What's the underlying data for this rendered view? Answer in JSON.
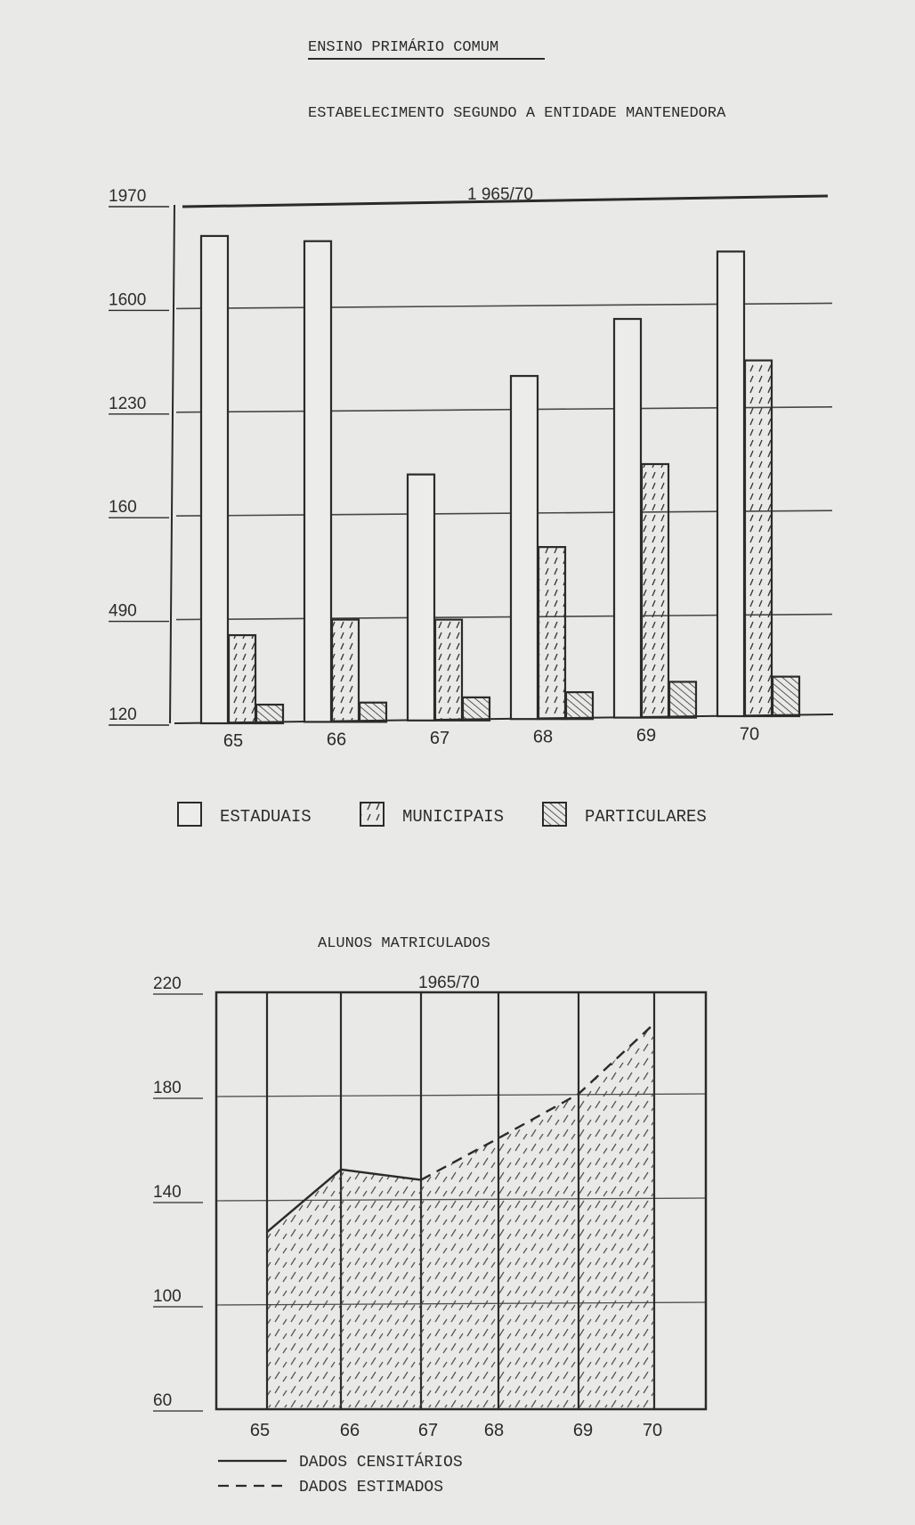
{
  "header": {
    "title": "ENSINO PRIMÁRIO COMUM",
    "subtitle": "ESTABELECIMENTO SEGUNDO A ENTIDADE MANTENEDORA"
  },
  "colors": {
    "ink": "#2b2b2b",
    "paper": "#e9e9e7",
    "bar_fill": "#ececea"
  },
  "chart_data": [
    {
      "type": "bar",
      "title": "ESTABELECIMENTO SEGUNDO A ENTIDADE MANTENEDORA",
      "period_label": "1 965/70",
      "categories": [
        "65",
        "66",
        "67",
        "68",
        "69",
        "70"
      ],
      "y_tick_labels": [
        "120",
        "490",
        "160",
        "1230",
        "1600",
        "1970"
      ],
      "y_tick_values": [
        0,
        1,
        2,
        3,
        4,
        5
      ],
      "ylim": [
        0,
        5
      ],
      "series": [
        {
          "name": "ESTADUAIS",
          "pattern": "blank",
          "values": [
            4.7,
            4.65,
            2.4,
            3.35,
            3.9,
            4.55
          ]
        },
        {
          "name": "MUNICIPAIS",
          "pattern": "dashes",
          "values": [
            0.85,
            1.0,
            1.0,
            1.7,
            2.5,
            3.5
          ]
        },
        {
          "name": "PARTICULARES",
          "pattern": "hatch",
          "values": [
            0.18,
            0.2,
            0.25,
            0.3,
            0.4,
            0.45
          ]
        }
      ],
      "grid": true,
      "legend_position": "bottom"
    },
    {
      "type": "area",
      "title": "ALUNOS MATRICULADOS",
      "period_label": "1965/70",
      "categories": [
        "65",
        "66",
        "67",
        "68",
        "69",
        "70"
      ],
      "y_tick_labels": [
        "60",
        "100",
        "140",
        "180",
        "220"
      ],
      "ylim": [
        60,
        220
      ],
      "series": [
        {
          "name": "DADOS CENSITÁRIOS",
          "style": "solid",
          "x": [
            "65",
            "66",
            "67"
          ],
          "values": [
            128,
            152,
            148
          ]
        },
        {
          "name": "DADOS ESTIMADOS",
          "style": "dashed",
          "x": [
            "67",
            "68",
            "69",
            "70"
          ],
          "values": [
            148,
            164,
            181,
            208
          ]
        }
      ],
      "grid": true,
      "legend_position": "bottom-left"
    }
  ]
}
